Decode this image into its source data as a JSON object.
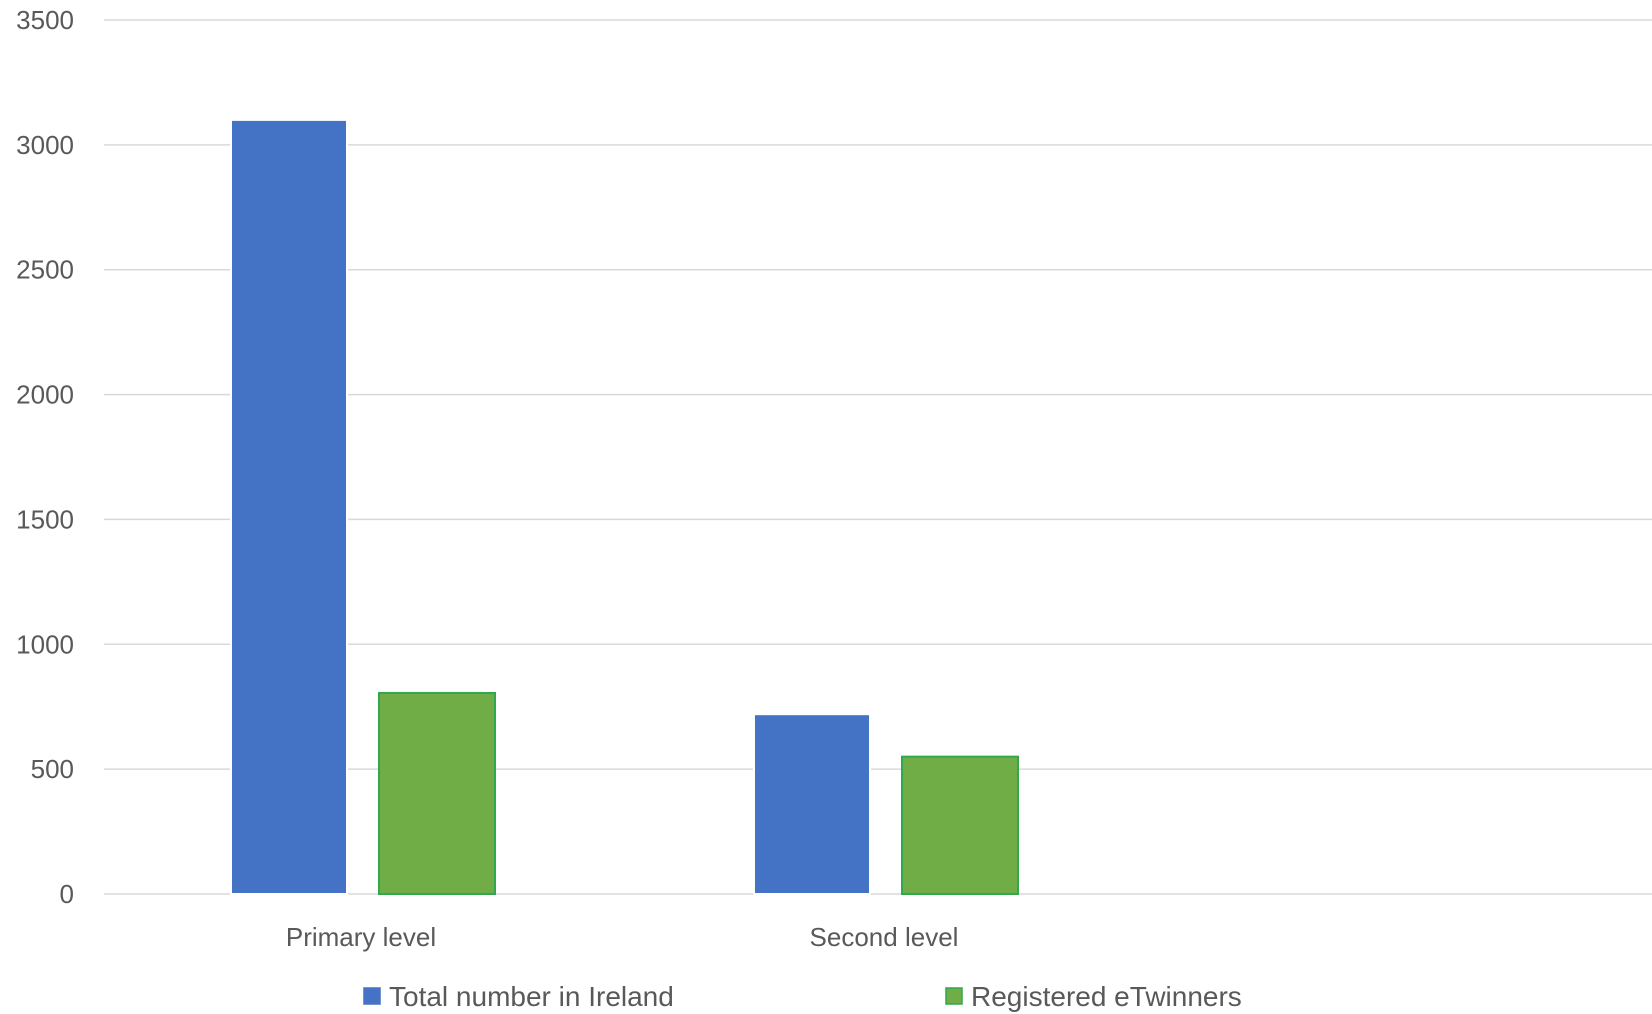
{
  "chart_data": {
    "type": "bar",
    "title": "",
    "xlabel": "",
    "ylabel": "",
    "categories": [
      "Primary level",
      "Second level"
    ],
    "series": [
      {
        "name": "Total number in Ireland",
        "values": [
          3100,
          720
        ],
        "color": "#4472C4"
      },
      {
        "name": "Registered eTwinners",
        "values": [
          805,
          550
        ],
        "color": "#70AD47"
      }
    ],
    "ylim": [
      0,
      3500
    ],
    "yticks": [
      0,
      500,
      1000,
      1500,
      2000,
      2500,
      3000,
      3500
    ],
    "grid": true,
    "legend_position": "bottom",
    "colors": {
      "gridline": "#d9d9d9",
      "axis_text": "#595959",
      "green_border": "#2fa84f",
      "blue_border": "#ffffff"
    }
  }
}
